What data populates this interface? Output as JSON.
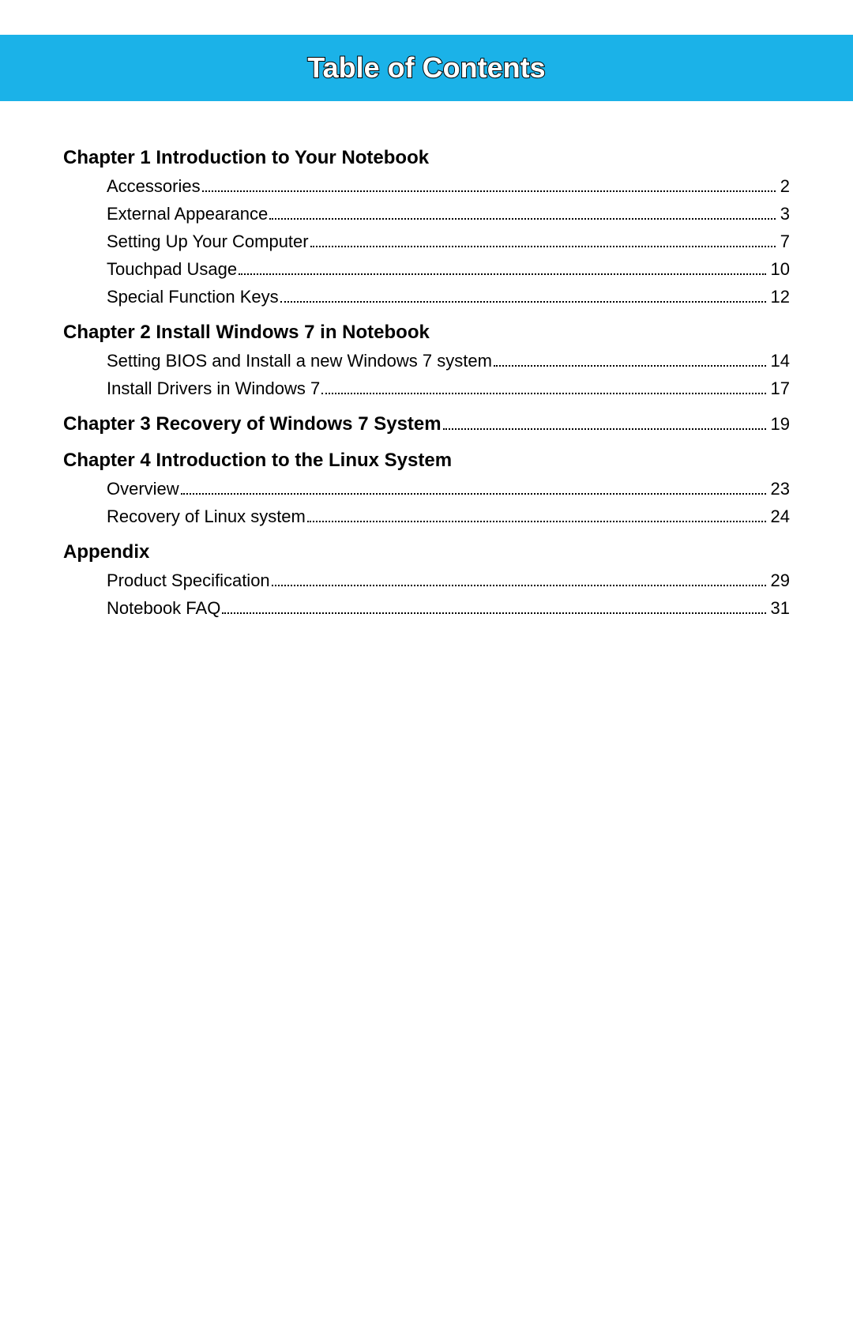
{
  "colors": {
    "header_bg": "#1BB2E8",
    "header_text_fill": "#ffffff",
    "header_text_stroke": "#000000",
    "page_bg": "#ffffff",
    "text": "#000000"
  },
  "typography": {
    "title_fontsize_pt": 27,
    "chapter_fontsize_pt": 18,
    "item_fontsize_pt": 16,
    "font_family": "Arial"
  },
  "header": {
    "title": "Table of Contents"
  },
  "toc": [
    {
      "title": "Chapter 1 Introduction to Your Notebook",
      "page": null,
      "items": [
        {
          "label": "Accessories",
          "page": "2"
        },
        {
          "label": "External Appearance",
          "page": "3"
        },
        {
          "label": "Setting Up Your Computer",
          "page": "7"
        },
        {
          "label": "Touchpad Usage",
          "page": "10"
        },
        {
          "label": "Special Function Keys",
          "page": "12"
        }
      ]
    },
    {
      "title": "Chapter 2 Install Windows 7 in Notebook",
      "page": null,
      "items": [
        {
          "label": "Setting BIOS and Install a new Windows 7 system",
          "page": "14"
        },
        {
          "label": "Install Drivers in Windows 7",
          "page": "17"
        }
      ]
    },
    {
      "title": "Chapter 3 Recovery of Windows 7 System",
      "page": "19",
      "items": []
    },
    {
      "title": "Chapter 4 Introduction to the Linux System",
      "page": null,
      "items": [
        {
          "label": "Overview",
          "page": "23"
        },
        {
          "label": "Recovery of Linux system",
          "page": "24"
        }
      ]
    },
    {
      "title": "Appendix",
      "page": null,
      "items": [
        {
          "label": "Product Specification",
          "page": "29"
        },
        {
          "label": "Notebook FAQ",
          "page": "31"
        }
      ]
    }
  ]
}
